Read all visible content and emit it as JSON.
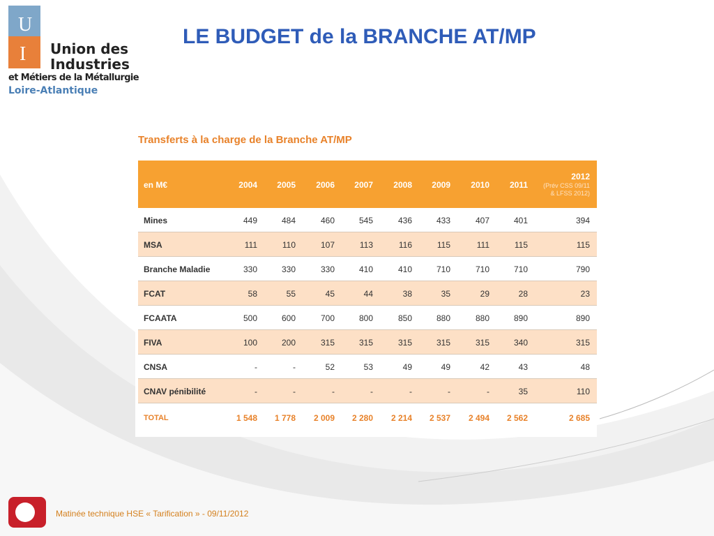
{
  "logo": {
    "letters": [
      "U",
      "I"
    ],
    "lines": [
      "Union des",
      "Industries",
      "et Métiers de la Métallurgie"
    ],
    "region": "Loire-Atlantique"
  },
  "title": "LE BUDGET de la BRANCHE AT/MP",
  "table": {
    "caption": "Transferts à la charge de la Branche AT/MP",
    "header": {
      "unit": "en M€",
      "years": [
        "2004",
        "2005",
        "2006",
        "2007",
        "2008",
        "2009",
        "2010",
        "2011"
      ],
      "last": {
        "year": "2012",
        "note": [
          "(Prév CSS 09/11",
          "& LFSS 2012)"
        ]
      }
    },
    "rows": [
      {
        "label": "Mines",
        "values": [
          "449",
          "484",
          "460",
          "545",
          "436",
          "433",
          "407",
          "401",
          "394"
        ]
      },
      {
        "label": "MSA",
        "values": [
          "111",
          "110",
          "107",
          "113",
          "116",
          "115",
          "111",
          "115",
          "115"
        ]
      },
      {
        "label": "Branche Maladie",
        "values": [
          "330",
          "330",
          "330",
          "410",
          "410",
          "710",
          "710",
          "710",
          "790"
        ]
      },
      {
        "label": "FCAT",
        "values": [
          "58",
          "55",
          "45",
          "44",
          "38",
          "35",
          "29",
          "28",
          "23"
        ]
      },
      {
        "label": "FCAATA",
        "values": [
          "500",
          "600",
          "700",
          "800",
          "850",
          "880",
          "880",
          "890",
          "890"
        ]
      },
      {
        "label": "FIVA",
        "values": [
          "100",
          "200",
          "315",
          "315",
          "315",
          "315",
          "315",
          "340",
          "315"
        ]
      },
      {
        "label": "CNSA",
        "values": [
          "-",
          "-",
          "52",
          "53",
          "49",
          "49",
          "42",
          "43",
          "48"
        ]
      },
      {
        "label": "CNAV pénibilité",
        "values": [
          "-",
          "-",
          "-",
          "-",
          "-",
          "-",
          "-",
          "35",
          "110"
        ]
      }
    ],
    "total": {
      "label": "TOTAL",
      "values": [
        "1 548",
        "1 778",
        "2 009",
        "2 280",
        "2 214",
        "2 537",
        "2 494",
        "2 562",
        "2 685"
      ]
    }
  },
  "footer": "Matinée technique HSE « Tarification » - 09/11/2012"
}
